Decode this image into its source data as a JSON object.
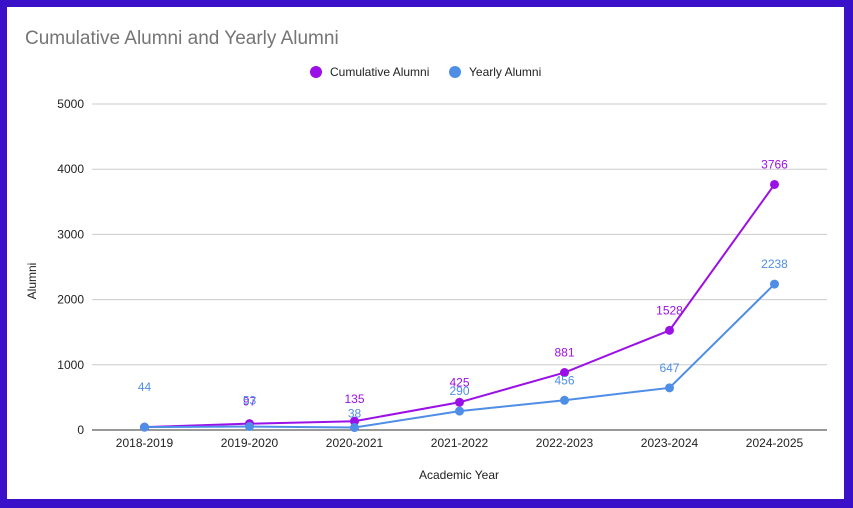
{
  "chart_data": {
    "type": "line",
    "title": "Cumulative Alumni and Yearly Alumni",
    "xlabel": "Academic Year",
    "ylabel": "Alumni",
    "ylim": [
      0,
      5000
    ],
    "yticks": [
      0,
      1000,
      2000,
      3000,
      4000,
      5000
    ],
    "grid": true,
    "legend": "top-center",
    "categories": [
      "2018-2019",
      "2019-2020",
      "2020-2021",
      "2021-2022",
      "2022-2023",
      "2023-2024",
      "2024-2025"
    ],
    "series": [
      {
        "name": "Cumulative Alumni",
        "color": "#9c10e8",
        "values": [
          44,
          97,
          135,
          425,
          881,
          1528,
          3766
        ]
      },
      {
        "name": "Yearly Alumni",
        "color": "#4f8ee6",
        "values": [
          44,
          53,
          38,
          290,
          456,
          647,
          2238
        ]
      }
    ],
    "data_labels": [
      [
        "",
        "97",
        "135",
        "425",
        "881",
        "1528",
        "3766"
      ],
      [
        "44",
        "53",
        "38",
        "290",
        "456",
        "647",
        "2238"
      ]
    ]
  }
}
